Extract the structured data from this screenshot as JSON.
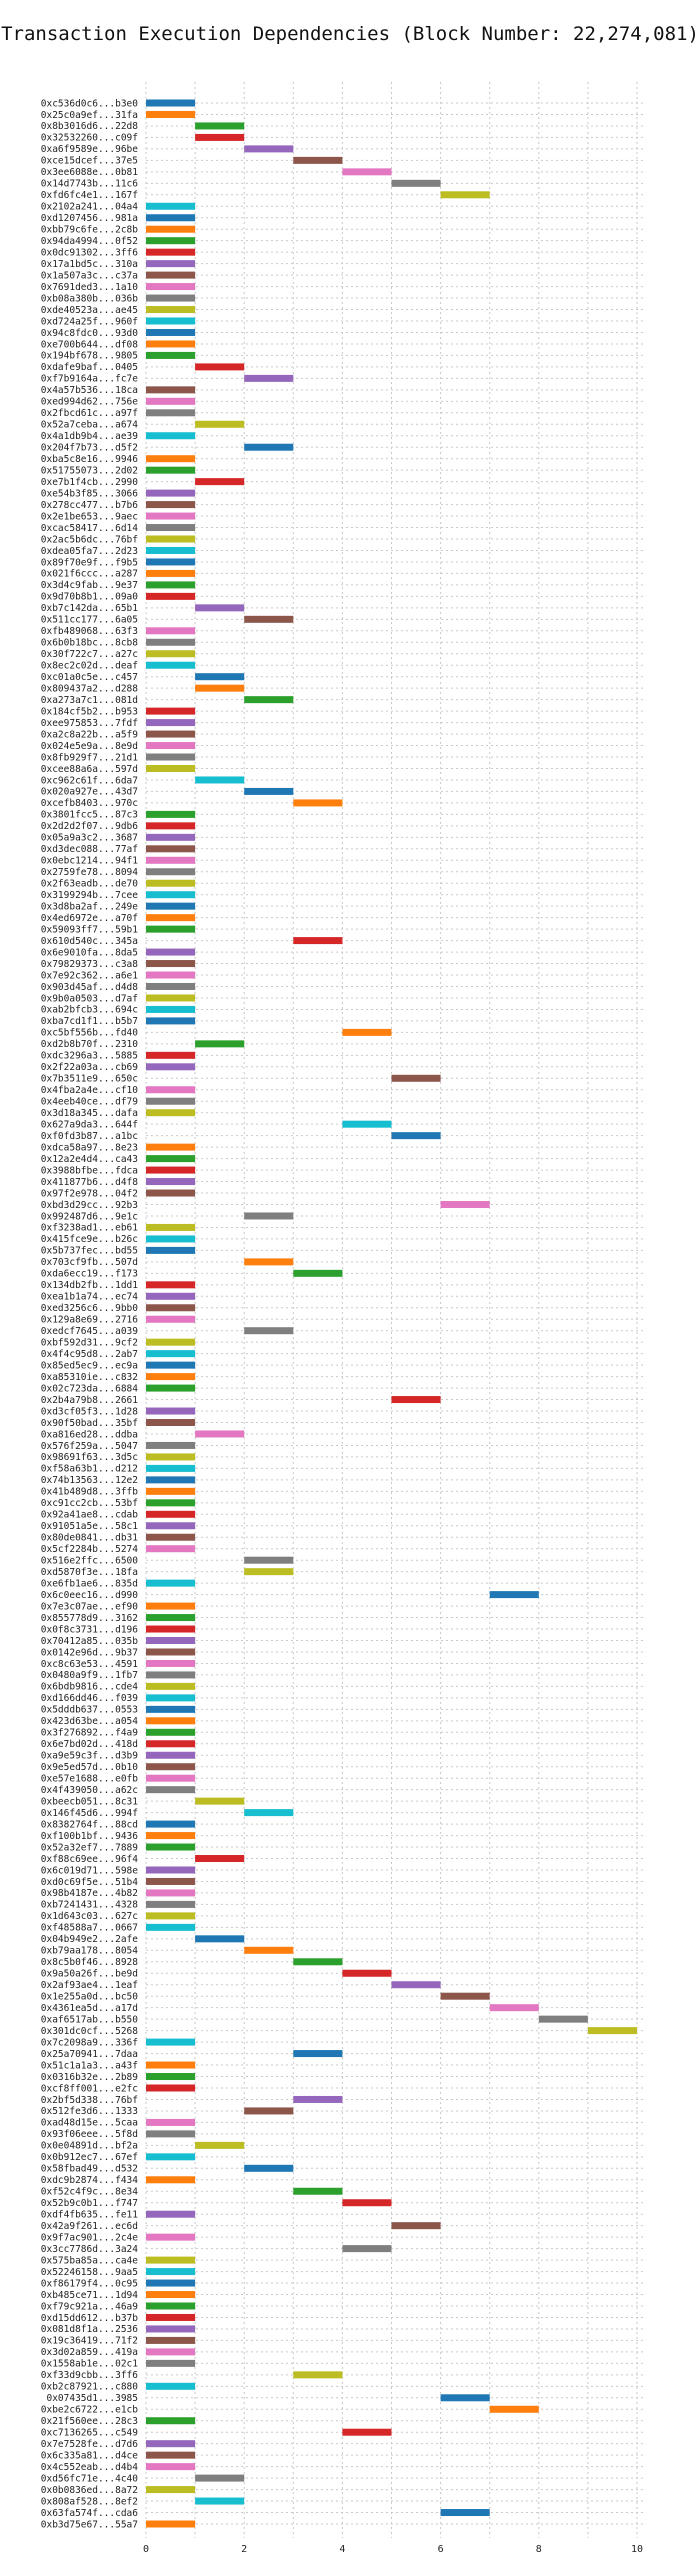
{
  "chart_data": {
    "type": "bar",
    "orientation": "horizontal-gantt",
    "title": "Transaction Execution Dependencies (Block Number: 22,274,081)",
    "xlabel": "",
    "ylabel": "",
    "xlim": [
      0,
      10
    ],
    "xticks": [
      0,
      2,
      4,
      6,
      8,
      10
    ],
    "grid": true,
    "bar_length": 1,
    "colors": [
      "#1f77b4",
      "#ff7f0e",
      "#2ca02c",
      "#d62728",
      "#9467bd",
      "#8c564b",
      "#e377c2",
      "#7f7f7f",
      "#bcbd22",
      "#17becf"
    ],
    "transactions": [
      {
        "label": "0xc536d0c6...b3e0",
        "start": 0
      },
      {
        "label": "0x25c0a9ef...31fa",
        "start": 0
      },
      {
        "label": "0x8b3016d6...22d8",
        "start": 1
      },
      {
        "label": "0x32532260...c09f",
        "start": 1
      },
      {
        "label": "0xa6f9589e...96be",
        "start": 2
      },
      {
        "label": "0xce15dcef...37e5",
        "start": 3
      },
      {
        "label": "0x3ee6088e...0b81",
        "start": 4
      },
      {
        "label": "0x14d7743b...11c6",
        "start": 5
      },
      {
        "label": "0xfd6fc4e1...167f",
        "start": 6
      },
      {
        "label": "0x2102a241...04a4",
        "start": 0
      },
      {
        "label": "0xd1207456...981a",
        "start": 0
      },
      {
        "label": "0xbb79c6fe...2c8b",
        "start": 0
      },
      {
        "label": "0x94da4994...0f52",
        "start": 0
      },
      {
        "label": "0x0dc91302...3ff6",
        "start": 0
      },
      {
        "label": "0x17a1bd5c...310a",
        "start": 0
      },
      {
        "label": "0x1a507a3c...c37a",
        "start": 0
      },
      {
        "label": "0x7691ded3...1a10",
        "start": 0
      },
      {
        "label": "0xb08a380b...036b",
        "start": 0
      },
      {
        "label": "0xde40523a...ae45",
        "start": 0
      },
      {
        "label": "0xd724a25f...960f",
        "start": 0
      },
      {
        "label": "0x94c8fdc0...93d0",
        "start": 0
      },
      {
        "label": "0xe700b644...df08",
        "start": 0
      },
      {
        "label": "0x194bf678...9805",
        "start": 0
      },
      {
        "label": "0xdafe9baf...0405",
        "start": 1
      },
      {
        "label": "0xf7b9164a...fc7e",
        "start": 2
      },
      {
        "label": "0x4a57b536...18ca",
        "start": 0
      },
      {
        "label": "0xed994d62...756e",
        "start": 0
      },
      {
        "label": "0x2fbcd61c...a97f",
        "start": 0
      },
      {
        "label": "0x52a7ceba...a674",
        "start": 1
      },
      {
        "label": "0x4a1db9b4...ae39",
        "start": 0
      },
      {
        "label": "0x204f7b73...d5f2",
        "start": 2
      },
      {
        "label": "0xba5c8e16...9946",
        "start": 0
      },
      {
        "label": "0x51755073...2d02",
        "start": 0
      },
      {
        "label": "0xe7b1f4cb...2990",
        "start": 1
      },
      {
        "label": "0xe54b3f85...3066",
        "start": 0
      },
      {
        "label": "0x278cc477...b7b6",
        "start": 0
      },
      {
        "label": "0x2e1be653...9aec",
        "start": 0
      },
      {
        "label": "0xcac58417...6d14",
        "start": 0
      },
      {
        "label": "0x2ac5b6dc...76bf",
        "start": 0
      },
      {
        "label": "0xdea05fa7...2d23",
        "start": 0
      },
      {
        "label": "0x89f70e9f...f9b5",
        "start": 0
      },
      {
        "label": "0x021f6ccc...a287",
        "start": 0
      },
      {
        "label": "0x3d4c9fab...9e37",
        "start": 0
      },
      {
        "label": "0x9d70b8b1...09a0",
        "start": 0
      },
      {
        "label": "0xb7c142da...65b1",
        "start": 1
      },
      {
        "label": "0x511cc177...6a05",
        "start": 2
      },
      {
        "label": "0xfb489068...63f3",
        "start": 0
      },
      {
        "label": "0x6b0b18bc...8cb8",
        "start": 0
      },
      {
        "label": "0x30f722c7...a27c",
        "start": 0
      },
      {
        "label": "0x8ec2c02d...deaf",
        "start": 0
      },
      {
        "label": "0xc01a0c5e...c457",
        "start": 1
      },
      {
        "label": "0x809437a2...d288",
        "start": 1
      },
      {
        "label": "0xa273a7c1...081d",
        "start": 2
      },
      {
        "label": "0x184cf5b2...b953",
        "start": 0
      },
      {
        "label": "0xee975853...7fdf",
        "start": 0
      },
      {
        "label": "0xa2c8a22b...a5f9",
        "start": 0
      },
      {
        "label": "0x024e5e9a...8e9d",
        "start": 0
      },
      {
        "label": "0x8fb929f7...21d1",
        "start": 0
      },
      {
        "label": "0xcee88a6a...597d",
        "start": 0
      },
      {
        "label": "0xc962c61f...6da7",
        "start": 1
      },
      {
        "label": "0x020a927e...43d7",
        "start": 2
      },
      {
        "label": "0xcefb8403...970c",
        "start": 3
      },
      {
        "label": "0x3801fcc5...87c3",
        "start": 0
      },
      {
        "label": "0x2d2d2f07...9db6",
        "start": 0
      },
      {
        "label": "0x05a9a3c2...3687",
        "start": 0
      },
      {
        "label": "0xd3dec088...77af",
        "start": 0
      },
      {
        "label": "0x0ebc1214...94f1",
        "start": 0
      },
      {
        "label": "0x2759fe78...8094",
        "start": 0
      },
      {
        "label": "0x2f63eadb...de70",
        "start": 0
      },
      {
        "label": "0x3199294b...7cee",
        "start": 0
      },
      {
        "label": "0x3d8ba2af...249e",
        "start": 0
      },
      {
        "label": "0x4ed6972e...a70f",
        "start": 0
      },
      {
        "label": "0x59093ff7...59b1",
        "start": 0
      },
      {
        "label": "0x610d540c...345a",
        "start": 3
      },
      {
        "label": "0x6e9010fa...8da5",
        "start": 0
      },
      {
        "label": "0x79829373...c3a8",
        "start": 0
      },
      {
        "label": "0x7e92c362...a6e1",
        "start": 0
      },
      {
        "label": "0x903d45af...d4d8",
        "start": 0
      },
      {
        "label": "0x9b0a0503...d7af",
        "start": 0
      },
      {
        "label": "0xab2bfcb3...694c",
        "start": 0
      },
      {
        "label": "0xba7cd1f1...b5b7",
        "start": 0
      },
      {
        "label": "0xc5bf556b...fd40",
        "start": 4
      },
      {
        "label": "0xd2b8b70f...2310",
        "start": 1
      },
      {
        "label": "0xdc3296a3...5885",
        "start": 0
      },
      {
        "label": "0x2f22a03a...cb69",
        "start": 0
      },
      {
        "label": "0x7b3511e9...650c",
        "start": 5
      },
      {
        "label": "0x4fba2a4e...cf10",
        "start": 0
      },
      {
        "label": "0x4eeb40ce...df79",
        "start": 0
      },
      {
        "label": "0x3d18a345...dafa",
        "start": 0
      },
      {
        "label": "0x627a9da3...644f",
        "start": 4
      },
      {
        "label": "0xf0fd3b87...a1bc",
        "start": 5
      },
      {
        "label": "0xdca58a97...8e23",
        "start": 0
      },
      {
        "label": "0x12a2e4d4...ca43",
        "start": 0
      },
      {
        "label": "0x3988bfbe...fdca",
        "start": 0
      },
      {
        "label": "0x411877b6...d4f8",
        "start": 0
      },
      {
        "label": "0x97f2e978...04f2",
        "start": 0
      },
      {
        "label": "0xbd3d29cc...92b3",
        "start": 6
      },
      {
        "label": "0x992487d6...9e1c",
        "start": 2
      },
      {
        "label": "0xf3238ad1...eb61",
        "start": 0
      },
      {
        "label": "0x415fce9e...b26c",
        "start": 0
      },
      {
        "label": "0x5b737fec...bd55",
        "start": 0
      },
      {
        "label": "0x703cf9fb...507d",
        "start": 2
      },
      {
        "label": "0xda6ecc19...f173",
        "start": 3
      },
      {
        "label": "0x134db2fb...1dd1",
        "start": 0
      },
      {
        "label": "0xea1b1a74...ec74",
        "start": 0
      },
      {
        "label": "0xed3256c6...9bb0",
        "start": 0
      },
      {
        "label": "0x129a8e69...2716",
        "start": 0
      },
      {
        "label": "0xedcf7645...a039",
        "start": 2
      },
      {
        "label": "0xbf592d31...9cf2",
        "start": 0
      },
      {
        "label": "0x4f4c95d8...2ab7",
        "start": 0
      },
      {
        "label": "0x85ed5ec9...ec9a",
        "start": 0
      },
      {
        "label": "0xa85310ie...c832",
        "start": 0
      },
      {
        "label": "0x02c723da...6884",
        "start": 0
      },
      {
        "label": "0x2b4a79b8...2661",
        "start": 5
      },
      {
        "label": "0xd3cf05f3...1d28",
        "start": 0
      },
      {
        "label": "0x90f50bad...35bf",
        "start": 0
      },
      {
        "label": "0xa816ed28...ddba",
        "start": 1
      },
      {
        "label": "0x576f259a...5047",
        "start": 0
      },
      {
        "label": "0x98691f63...3d5c",
        "start": 0
      },
      {
        "label": "0xf58a63b1...d212",
        "start": 0
      },
      {
        "label": "0x74b13563...12e2",
        "start": 0
      },
      {
        "label": "0x41b489d8...3ffb",
        "start": 0
      },
      {
        "label": "0xc91cc2cb...53bf",
        "start": 0
      },
      {
        "label": "0x92a41ae8...cdab",
        "start": 0
      },
      {
        "label": "0x91051a5e...58c1",
        "start": 0
      },
      {
        "label": "0x80de0841...db31",
        "start": 0
      },
      {
        "label": "0x5cf2284b...5274",
        "start": 0
      },
      {
        "label": "0x516e2ffc...6500",
        "start": 2
      },
      {
        "label": "0xd5870f3e...18fa",
        "start": 2
      },
      {
        "label": "0xe6fb1ae6...835d",
        "start": 0
      },
      {
        "label": "0x6c0eec16...d990",
        "start": 7
      },
      {
        "label": "0x7e3c07ae...ef90",
        "start": 0
      },
      {
        "label": "0x855778d9...3162",
        "start": 0
      },
      {
        "label": "0x0f8c3731...d196",
        "start": 0
      },
      {
        "label": "0x70412a85...035b",
        "start": 0
      },
      {
        "label": "0x0142e96d...9b37",
        "start": 0
      },
      {
        "label": "0xc8c63e53...4591",
        "start": 0
      },
      {
        "label": "0x0480a9f9...1fb7",
        "start": 0
      },
      {
        "label": "0x6bdb9816...cde4",
        "start": 0
      },
      {
        "label": "0xd166dd46...f039",
        "start": 0
      },
      {
        "label": "0x5dddb637...0553",
        "start": 0
      },
      {
        "label": "0x423d63be...a054",
        "start": 0
      },
      {
        "label": "0x3f276892...f4a9",
        "start": 0
      },
      {
        "label": "0x6e7bd02d...418d",
        "start": 0
      },
      {
        "label": "0xa9e59c3f...d3b9",
        "start": 0
      },
      {
        "label": "0x9e5ed57d...0b10",
        "start": 0
      },
      {
        "label": "0xe57e1688...e0fb",
        "start": 0
      },
      {
        "label": "0x4f439050...a62c",
        "start": 0
      },
      {
        "label": "0xbeecb051...8c31",
        "start": 1
      },
      {
        "label": "0x146f45d6...994f",
        "start": 2
      },
      {
        "label": "0x8382764f...88cd",
        "start": 0
      },
      {
        "label": "0xf100b1bf...9436",
        "start": 0
      },
      {
        "label": "0x52a32ef7...7889",
        "start": 0
      },
      {
        "label": "0xf88c69ee...96f4",
        "start": 1
      },
      {
        "label": "0x6c019d71...598e",
        "start": 0
      },
      {
        "label": "0xd0c69f5e...51b4",
        "start": 0
      },
      {
        "label": "0x98b4187e...4b82",
        "start": 0
      },
      {
        "label": "0xb7241431...4328",
        "start": 0
      },
      {
        "label": "0x1d643c03...627c",
        "start": 0
      },
      {
        "label": "0xf48588a7...0667",
        "start": 0
      },
      {
        "label": "0x04b949e2...2afe",
        "start": 1
      },
      {
        "label": "0xb79aa178...8054",
        "start": 2
      },
      {
        "label": "0x8c5b0f46...8928",
        "start": 3
      },
      {
        "label": "0x9a50a26f...be9d",
        "start": 4
      },
      {
        "label": "0x2af93ae4...1eaf",
        "start": 5
      },
      {
        "label": "0x1e255a0d...bc50",
        "start": 6
      },
      {
        "label": "0x4361ea5d...a17d",
        "start": 7
      },
      {
        "label": "0xaf6517ab...b550",
        "start": 8
      },
      {
        "label": "0x301dc0cf...5268",
        "start": 9
      },
      {
        "label": "0x7c2098a9...336f",
        "start": 0
      },
      {
        "label": "0x25a70941...7daa",
        "start": 3
      },
      {
        "label": "0x51c1a1a3...a43f",
        "start": 0
      },
      {
        "label": "0x0316b32e...2b89",
        "start": 0
      },
      {
        "label": "0xcf8ff001...e2fc",
        "start": 0
      },
      {
        "label": "0x2bf5d338...76bf",
        "start": 3
      },
      {
        "label": "0x512fe3d6...1333",
        "start": 2
      },
      {
        "label": "0xad48d15e...5caa",
        "start": 0
      },
      {
        "label": "0x93f06eee...5f8d",
        "start": 0
      },
      {
        "label": "0x0e04891d...bf2a",
        "start": 1
      },
      {
        "label": "0x0b912ec7...67ef",
        "start": 0
      },
      {
        "label": "0x58fbad49...d532",
        "start": 2
      },
      {
        "label": "0xdc9b2874...f434",
        "start": 0
      },
      {
        "label": "0xf52c4f9c...8e34",
        "start": 3
      },
      {
        "label": "0x52b9c0b1...f747",
        "start": 4
      },
      {
        "label": "0xdf4fb635...fe11",
        "start": 0
      },
      {
        "label": "0x42a9f261...ec6d",
        "start": 5
      },
      {
        "label": "0x9f7ac901...2c4e",
        "start": 0
      },
      {
        "label": "0x3cc7786d...3a24",
        "start": 4
      },
      {
        "label": "0x575ba85a...ca4e",
        "start": 0
      },
      {
        "label": "0x52246158...9aa5",
        "start": 0
      },
      {
        "label": "0xf86179f4...0c95",
        "start": 0
      },
      {
        "label": "0xb485ce71...1d94",
        "start": 0
      },
      {
        "label": "0xf79c921a...46a9",
        "start": 0
      },
      {
        "label": "0xd15dd612...b37b",
        "start": 0
      },
      {
        "label": "0x081d8f1a...2536",
        "start": 0
      },
      {
        "label": "0x19c36419...71f2",
        "start": 0
      },
      {
        "label": "0x3d02a859...419a",
        "start": 0
      },
      {
        "label": "0x1558ab1e...02c1",
        "start": 0
      },
      {
        "label": "0xf33d9cbb...3ff6",
        "start": 3
      },
      {
        "label": "0xb2c87921...c880",
        "start": 0
      },
      {
        "label": "0x07435d1...3985",
        "start": 6
      },
      {
        "label": "0xbe2c6722...e1cb",
        "start": 7
      },
      {
        "label": "0x21f560ee...28c3",
        "start": 0
      },
      {
        "label": "0xc7136265...c549",
        "start": 4
      },
      {
        "label": "0x7e7528fe...d7d6",
        "start": 0
      },
      {
        "label": "0x6c335a81...d4ce",
        "start": 0
      },
      {
        "label": "0x4c552eab...d4b4",
        "start": 0
      },
      {
        "label": "0xd56fc71e...4c40",
        "start": 1
      },
      {
        "label": "0x0b0836ed...8a72",
        "start": 0
      },
      {
        "label": "0x808af528...8ef2",
        "start": 1
      },
      {
        "label": "0x63fa574f...cda6",
        "start": 6
      },
      {
        "label": "0xb3d75e67...55a7",
        "start": 0
      }
    ]
  }
}
